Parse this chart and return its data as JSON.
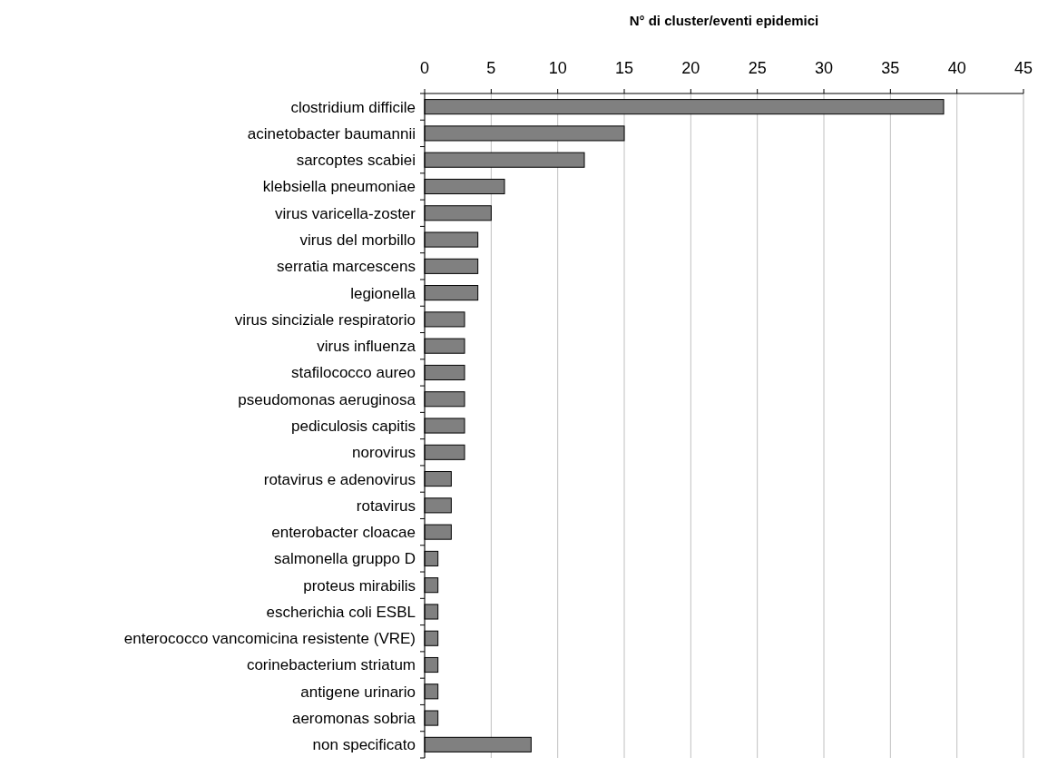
{
  "chart_data": {
    "type": "bar",
    "orientation": "horizontal",
    "xlabel": "N° di cluster/eventi epidemici",
    "categories": [
      "clostridium difficile",
      "acinetobacter baumannii",
      "sarcoptes scabiei",
      "klebsiella pneumoniae",
      "virus varicella-zoster",
      "virus del morbillo",
      "serratia marcescens",
      "legionella",
      "virus sinciziale respiratorio",
      "virus influenza",
      "stafilococco aureo",
      "pseudomonas aeruginosa",
      "pediculosis capitis",
      "norovirus",
      "rotavirus e adenovirus",
      "rotavirus",
      "enterobacter cloacae",
      "salmonella gruppo D",
      "proteus mirabilis",
      "escherichia coli ESBL",
      "enterococco vancomicina resistente (VRE)",
      "corinebacterium striatum",
      "antigene urinario",
      "aeromonas sobria",
      "non specificato"
    ],
    "values": [
      39,
      15,
      12,
      6,
      5,
      4,
      4,
      4,
      3,
      3,
      3,
      3,
      3,
      3,
      2,
      2,
      2,
      1,
      1,
      1,
      1,
      1,
      1,
      1,
      8
    ],
    "color": "#808080",
    "xlim": [
      0,
      45
    ],
    "xticks": [
      0,
      5,
      10,
      15,
      20,
      25,
      30,
      35,
      40,
      45
    ],
    "grid": "x"
  }
}
